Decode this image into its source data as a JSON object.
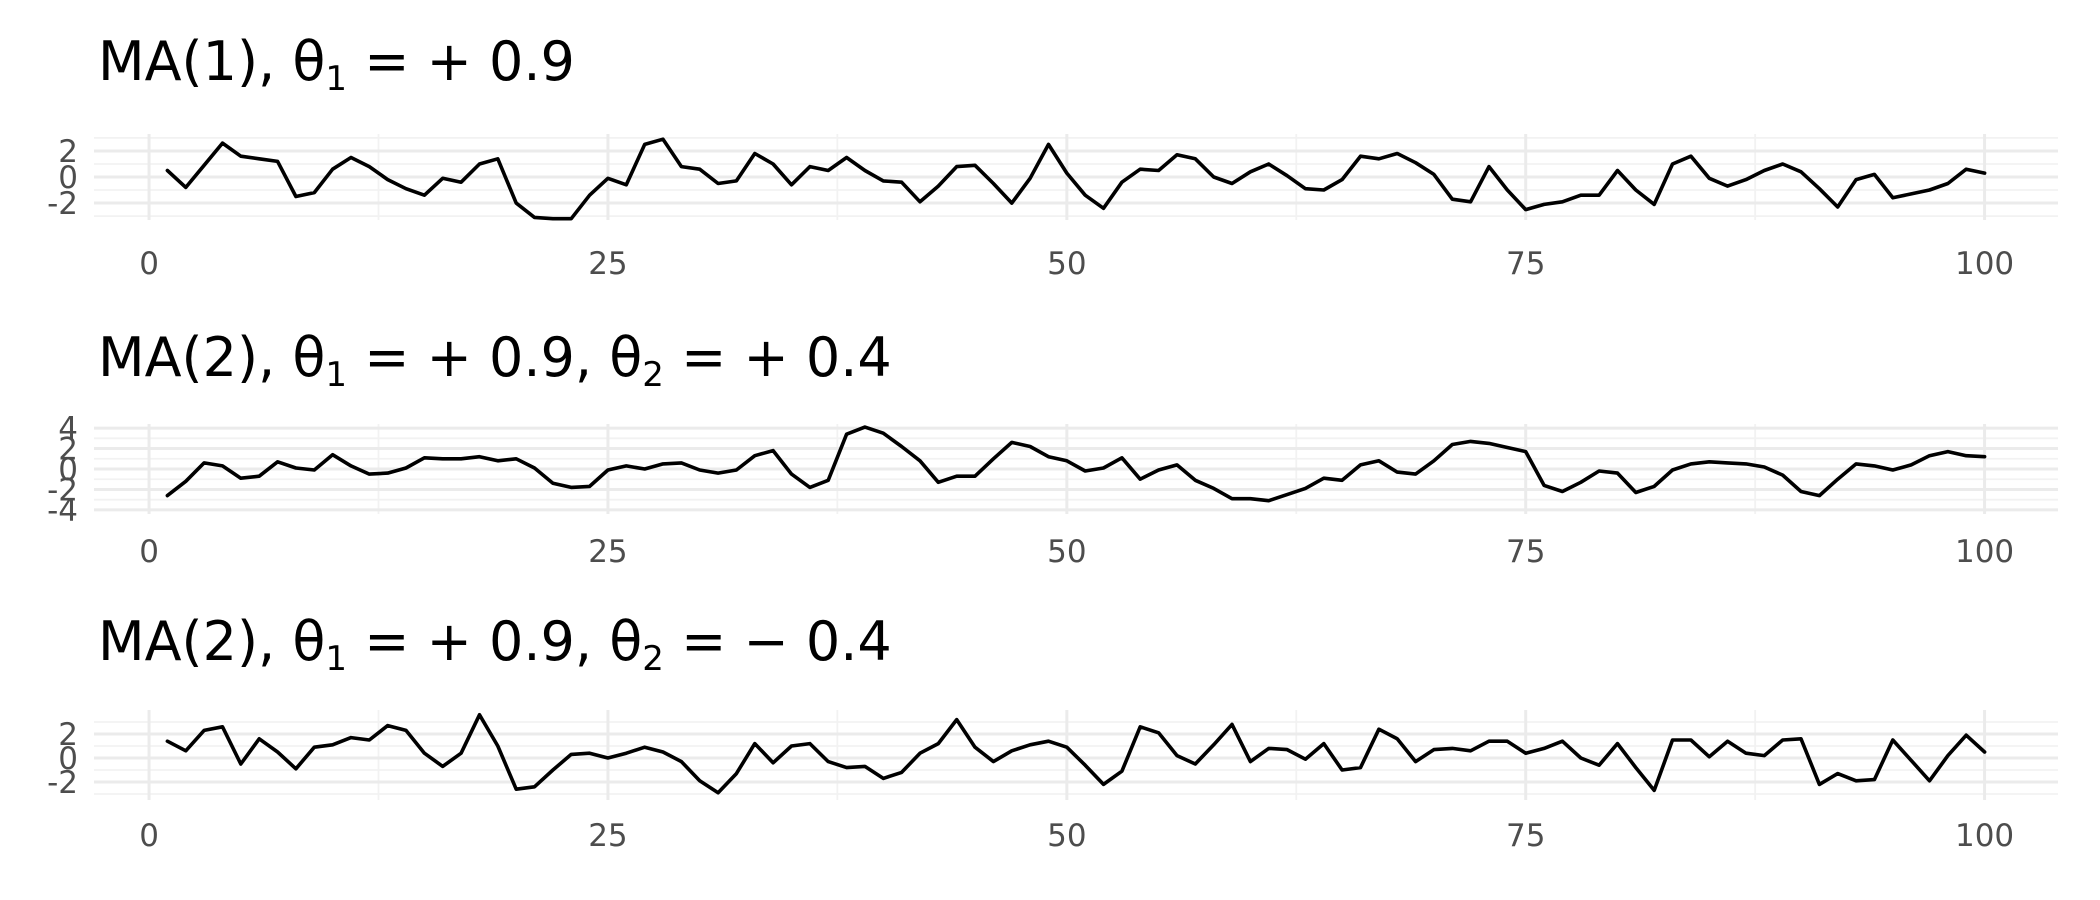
{
  "chart_data": [
    {
      "type": "line",
      "title": [
        "MA(1), θ",
        "1",
        " =  + 0.9"
      ],
      "xlim": [
        -3,
        104
      ],
      "ylim": [
        -3.3,
        3.3
      ],
      "x_ticks": [
        "0",
        "25",
        "50",
        "75",
        "100"
      ],
      "y_ticks": [
        "2",
        "0",
        "-2"
      ],
      "x": [
        1,
        2,
        3,
        4,
        5,
        6,
        7,
        8,
        9,
        10,
        11,
        12,
        13,
        14,
        15,
        16,
        17,
        18,
        19,
        20,
        21,
        22,
        23,
        24,
        25,
        26,
        27,
        28,
        29,
        30,
        31,
        32,
        33,
        34,
        35,
        36,
        37,
        38,
        39,
        40,
        41,
        42,
        43,
        44,
        45,
        46,
        47,
        48,
        49,
        50,
        51,
        52,
        53,
        54,
        55,
        56,
        57,
        58,
        59,
        60,
        61,
        62,
        63,
        64,
        65,
        66,
        67,
        68,
        69,
        70,
        71,
        72,
        73,
        74,
        75,
        76,
        77,
        78,
        79,
        80,
        81,
        82,
        83,
        84,
        85,
        86,
        87,
        88,
        89,
        90,
        91,
        92,
        93,
        94,
        95,
        96,
        97,
        98,
        99,
        100
      ],
      "series": [
        {
          "values": [
            0.5,
            -0.8,
            0.9,
            2.6,
            1.6,
            1.4,
            1.2,
            -1.5,
            -1.2,
            0.6,
            1.5,
            0.8,
            -0.2,
            -0.9,
            -1.4,
            -0.1,
            -0.4,
            1.0,
            1.4,
            -2.0,
            -3.1,
            -3.2,
            -3.2,
            -1.4,
            -0.1,
            -0.6,
            2.5,
            2.9,
            0.8,
            0.6,
            -0.5,
            -0.3,
            1.8,
            1.0,
            -0.6,
            0.8,
            0.5,
            1.5,
            0.5,
            -0.3,
            -0.4,
            -1.9,
            -0.7,
            0.8,
            0.9,
            -0.5,
            -2.0,
            -0.1,
            2.5,
            0.3,
            -1.4,
            -2.4,
            -0.4,
            0.6,
            0.5,
            1.7,
            1.4,
            0.0,
            -0.5,
            0.4,
            1.0,
            0.1,
            -0.9,
            -1.0,
            -0.2,
            1.6,
            1.4,
            1.8,
            1.1,
            0.2,
            -1.7,
            -1.9,
            0.8,
            -1.0,
            -2.5,
            -2.1,
            -1.9,
            -1.4,
            -1.4,
            0.5,
            -1.0,
            -2.1,
            1.0,
            1.6,
            -0.1,
            -0.7,
            -0.2,
            0.5,
            1.0,
            0.4,
            -0.9,
            -2.3,
            -0.2,
            0.2,
            -1.6,
            -1.3,
            -1.0,
            -0.5,
            0.6,
            0.3
          ]
        }
      ]
    },
    {
      "type": "line",
      "title": [
        "MA(2), θ",
        "1",
        " =  + 0.9, θ",
        "2",
        " =  + 0.4"
      ],
      "xlim": [
        -3,
        104
      ],
      "ylim": [
        -4.4,
        4.4
      ],
      "x_ticks": [
        "0",
        "25",
        "50",
        "75",
        "100"
      ],
      "y_ticks": [
        "4",
        "2",
        "0",
        "-2",
        "-4"
      ],
      "x": [
        1,
        2,
        3,
        4,
        5,
        6,
        7,
        8,
        9,
        10,
        11,
        12,
        13,
        14,
        15,
        16,
        17,
        18,
        19,
        20,
        21,
        22,
        23,
        24,
        25,
        26,
        27,
        28,
        29,
        30,
        31,
        32,
        33,
        34,
        35,
        36,
        37,
        38,
        39,
        40,
        41,
        42,
        43,
        44,
        45,
        46,
        47,
        48,
        49,
        50,
        51,
        52,
        53,
        54,
        55,
        56,
        57,
        58,
        59,
        60,
        61,
        62,
        63,
        64,
        65,
        66,
        67,
        68,
        69,
        70,
        71,
        72,
        73,
        74,
        75,
        76,
        77,
        78,
        79,
        80,
        81,
        82,
        83,
        84,
        85,
        86,
        87,
        88,
        89,
        90,
        91,
        92,
        93,
        94,
        95,
        96,
        97,
        98,
        99,
        100
      ],
      "series": [
        {
          "values": [
            -2.6,
            -1.2,
            0.6,
            0.3,
            -0.9,
            -0.7,
            0.7,
            0.1,
            -0.1,
            1.4,
            0.3,
            -0.5,
            -0.4,
            0.1,
            1.1,
            1.0,
            1.0,
            1.2,
            0.8,
            1.0,
            0.1,
            -1.4,
            -1.8,
            -1.7,
            -0.1,
            0.3,
            0.0,
            0.5,
            0.6,
            -0.1,
            -0.4,
            -0.1,
            1.3,
            1.8,
            -0.5,
            -1.8,
            -1.1,
            3.4,
            4.1,
            3.5,
            2.2,
            0.8,
            -1.3,
            -0.7,
            -0.7,
            1.0,
            2.6,
            2.2,
            1.2,
            0.8,
            -0.2,
            0.1,
            1.1,
            -1.0,
            -0.1,
            0.4,
            -1.1,
            -1.9,
            -2.9,
            -2.9,
            -3.1,
            -2.5,
            -1.9,
            -0.9,
            -1.1,
            0.4,
            0.8,
            -0.3,
            -0.5,
            0.8,
            2.4,
            2.7,
            2.5,
            2.1,
            1.7,
            -1.6,
            -2.2,
            -1.3,
            -0.2,
            -0.4,
            -2.3,
            -1.7,
            -0.1,
            0.5,
            0.7,
            0.6,
            0.5,
            0.2,
            -0.6,
            -2.2,
            -2.6,
            -1.0,
            0.5,
            0.3,
            -0.1,
            0.4,
            1.3,
            1.7,
            1.3,
            1.2
          ]
        }
      ]
    },
    {
      "type": "line",
      "title": [
        "MA(2), θ",
        "1",
        " =  + 0.9, θ",
        "2",
        " =  − 0.4"
      ],
      "xlim": [
        -3,
        104
      ],
      "ylim": [
        -3.5,
        4.0
      ],
      "x_ticks": [
        "0",
        "25",
        "50",
        "75",
        "100"
      ],
      "y_ticks": [
        "2",
        "0",
        "-2"
      ],
      "x": [
        1,
        2,
        3,
        4,
        5,
        6,
        7,
        8,
        9,
        10,
        11,
        12,
        13,
        14,
        15,
        16,
        17,
        18,
        19,
        20,
        21,
        22,
        23,
        24,
        25,
        26,
        27,
        28,
        29,
        30,
        31,
        32,
        33,
        34,
        35,
        36,
        37,
        38,
        39,
        40,
        41,
        42,
        43,
        44,
        45,
        46,
        47,
        48,
        49,
        50,
        51,
        52,
        53,
        54,
        55,
        56,
        57,
        58,
        59,
        60,
        61,
        62,
        63,
        64,
        65,
        66,
        67,
        68,
        69,
        70,
        71,
        72,
        73,
        74,
        75,
        76,
        77,
        78,
        79,
        80,
        81,
        82,
        83,
        84,
        85,
        86,
        87,
        88,
        89,
        90,
        91,
        92,
        93,
        94,
        95,
        96,
        97,
        98,
        99,
        100
      ],
      "series": [
        {
          "values": [
            1.4,
            0.6,
            2.3,
            2.6,
            -0.5,
            1.6,
            0.5,
            -0.9,
            0.9,
            1.1,
            1.7,
            1.5,
            2.7,
            2.3,
            0.4,
            -0.7,
            0.4,
            3.6,
            1.0,
            -2.6,
            -2.4,
            -1.0,
            0.3,
            0.4,
            0.0,
            0.4,
            0.9,
            0.5,
            -0.3,
            -1.9,
            -2.9,
            -1.3,
            1.2,
            -0.4,
            1.0,
            1.2,
            -0.3,
            -0.8,
            -0.7,
            -1.7,
            -1.2,
            0.4,
            1.2,
            3.2,
            0.9,
            -0.3,
            0.6,
            1.1,
            1.4,
            0.9,
            -0.6,
            -2.2,
            -1.1,
            2.6,
            2.1,
            0.2,
            -0.5,
            1.1,
            2.8,
            -0.3,
            0.8,
            0.7,
            -0.1,
            1.2,
            -1.0,
            -0.8,
            2.4,
            1.6,
            -0.3,
            0.7,
            0.8,
            0.6,
            1.4,
            1.4,
            0.4,
            0.8,
            1.4,
            0.0,
            -0.6,
            1.2,
            -0.8,
            -2.7,
            1.5,
            1.5,
            0.1,
            1.4,
            0.4,
            0.2,
            1.5,
            1.6,
            -2.2,
            -1.3,
            -1.9,
            -1.8,
            1.5,
            -0.2,
            -1.9,
            0.2,
            1.9,
            0.5
          ]
        }
      ]
    }
  ]
}
